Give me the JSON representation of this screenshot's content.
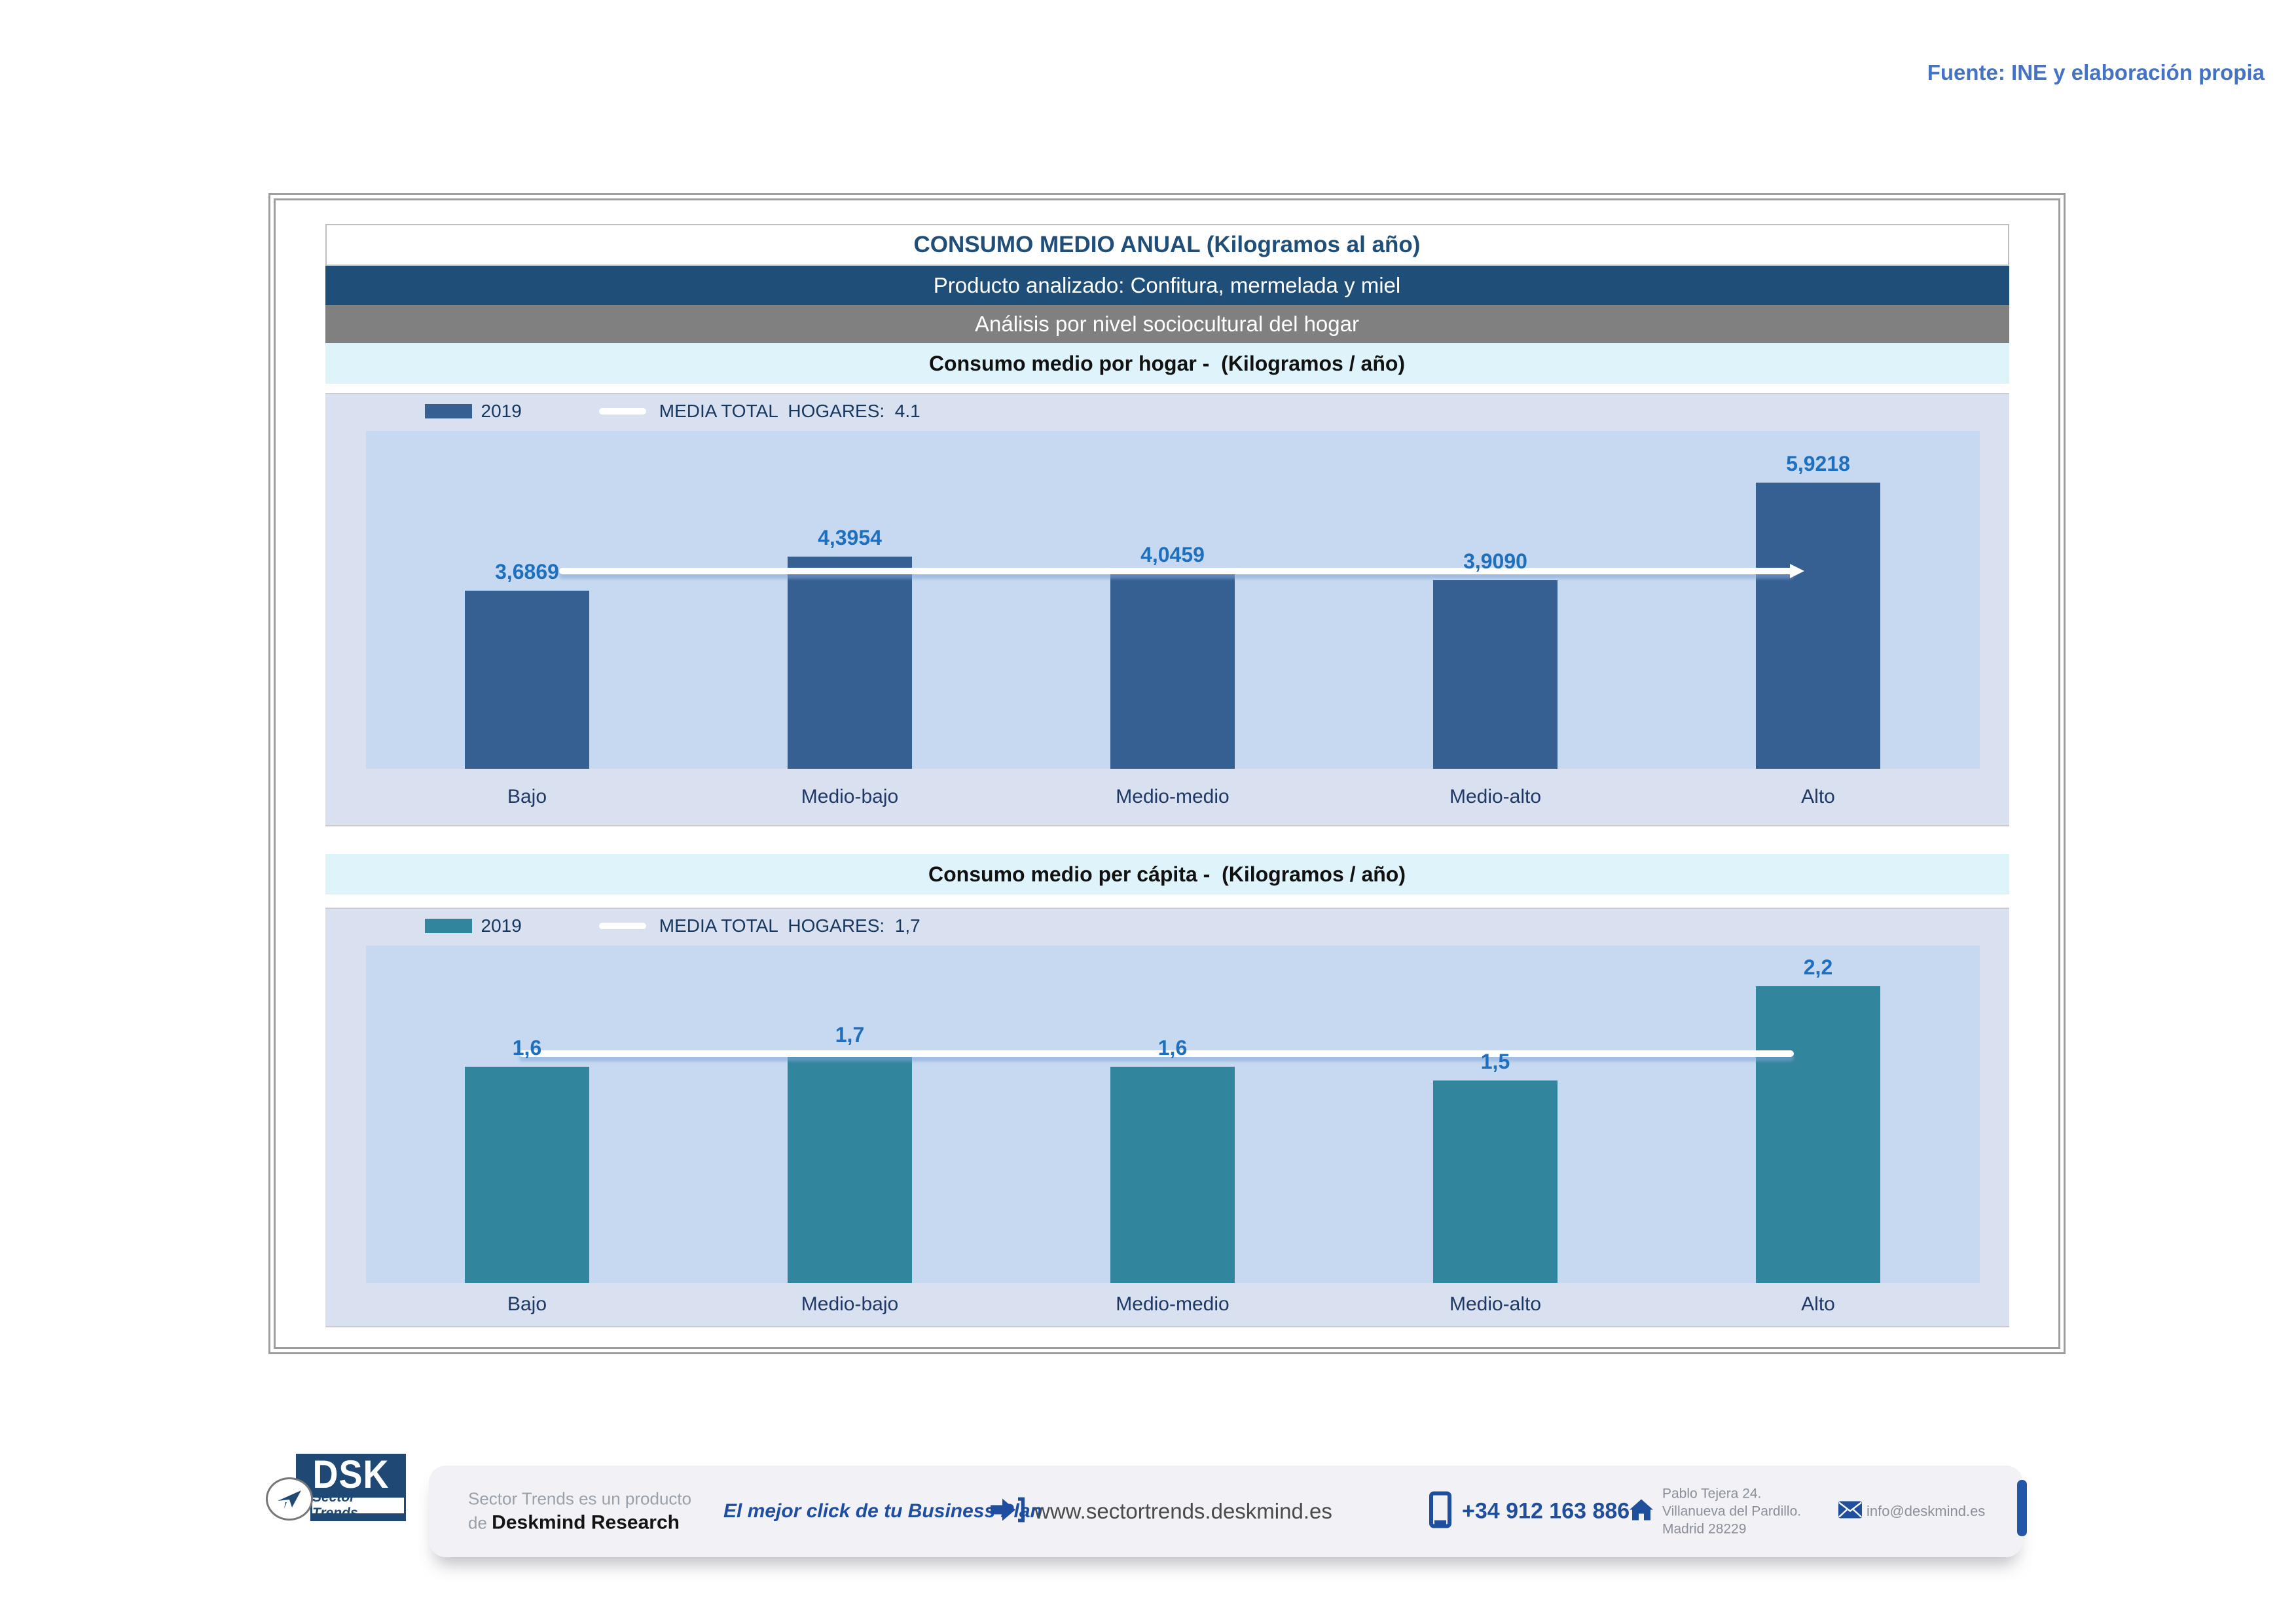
{
  "source_note": "Fuente: INE y elaboración propia",
  "header": {
    "title": "CONSUMO MEDIO ANUAL (Kilogramos al año)",
    "product": "Producto analizado: Confitura, mermelada y miel",
    "analysis": "Análisis por nivel sociocultural del hogar"
  },
  "sections": [
    {
      "title": "Consumo medio por hogar -  (Kilogramos / año)"
    },
    {
      "title": "Consumo medio per cápita -  (Kilogramos / año)"
    }
  ],
  "chart_data": [
    {
      "type": "bar",
      "title": "Consumo medio por hogar - (Kilogramos / año)",
      "categories": [
        "Bajo",
        "Medio-bajo",
        "Medio-medio",
        "Medio-alto",
        "Alto"
      ],
      "values": [
        3.6869,
        4.3954,
        4.0459,
        3.909,
        5.9218
      ],
      "value_labels": [
        "3,6869",
        "4,3954",
        "4,0459",
        "3,9090",
        "5,9218"
      ],
      "series_name": "2019",
      "media_label": "MEDIA TOTAL  HOGARES:  ",
      "media_display": "4.1",
      "media_value": 4.1,
      "ylim": [
        0,
        7
      ],
      "xlabel": "",
      "ylabel": "",
      "grid": false,
      "legend_position": "top-left",
      "bar_color": "#376092",
      "media_line_color": "#ffffff"
    },
    {
      "type": "bar",
      "title": "Consumo medio per cápita - (Kilogramos / año)",
      "categories": [
        "Bajo",
        "Medio-bajo",
        "Medio-medio",
        "Medio-alto",
        "Alto"
      ],
      "values": [
        1.6,
        1.7,
        1.6,
        1.5,
        2.2
      ],
      "value_labels": [
        "1,6",
        "1,7",
        "1,6",
        "1,5",
        "2,2"
      ],
      "series_name": "2019",
      "media_label": "MEDIA TOTAL  HOGARES:  ",
      "media_display": "1,7",
      "media_value": 1.7,
      "ylim": [
        0,
        2.5
      ],
      "xlabel": "",
      "ylabel": "",
      "grid": false,
      "legend_position": "top-left",
      "bar_color": "#31859C",
      "media_line_color": "#ffffff"
    }
  ],
  "footer": {
    "logo_main": "DSK",
    "logo_sub": "Sector Trends",
    "product_line1": "Sector Trends es un producto",
    "product_line2_prefix": "de ",
    "product_line2_name": "Deskmind Research",
    "tagline": "El mejor click de tu Business Plan",
    "website": "www.sectortrends.deskmind.es",
    "phone": "+34 912 163 886",
    "address_line1": "Pablo Tejera 24.",
    "address_line2": "Villanueva del Pardillo.",
    "address_line3": "Madrid 28229",
    "email": "info@deskmind.es"
  },
  "colors": {
    "header_navy": "#1F4E79",
    "header_gray": "#808080",
    "section_cyan": "#DFF3FA",
    "panel_bg": "#D9E1F1",
    "plot_bg": "#C6D9F1",
    "bar_navy": "#376092",
    "bar_teal": "#31859C",
    "value_label_blue": "#1F6FBF",
    "source_blue": "#4472C4",
    "footer_accent": "#1F4E9C"
  }
}
